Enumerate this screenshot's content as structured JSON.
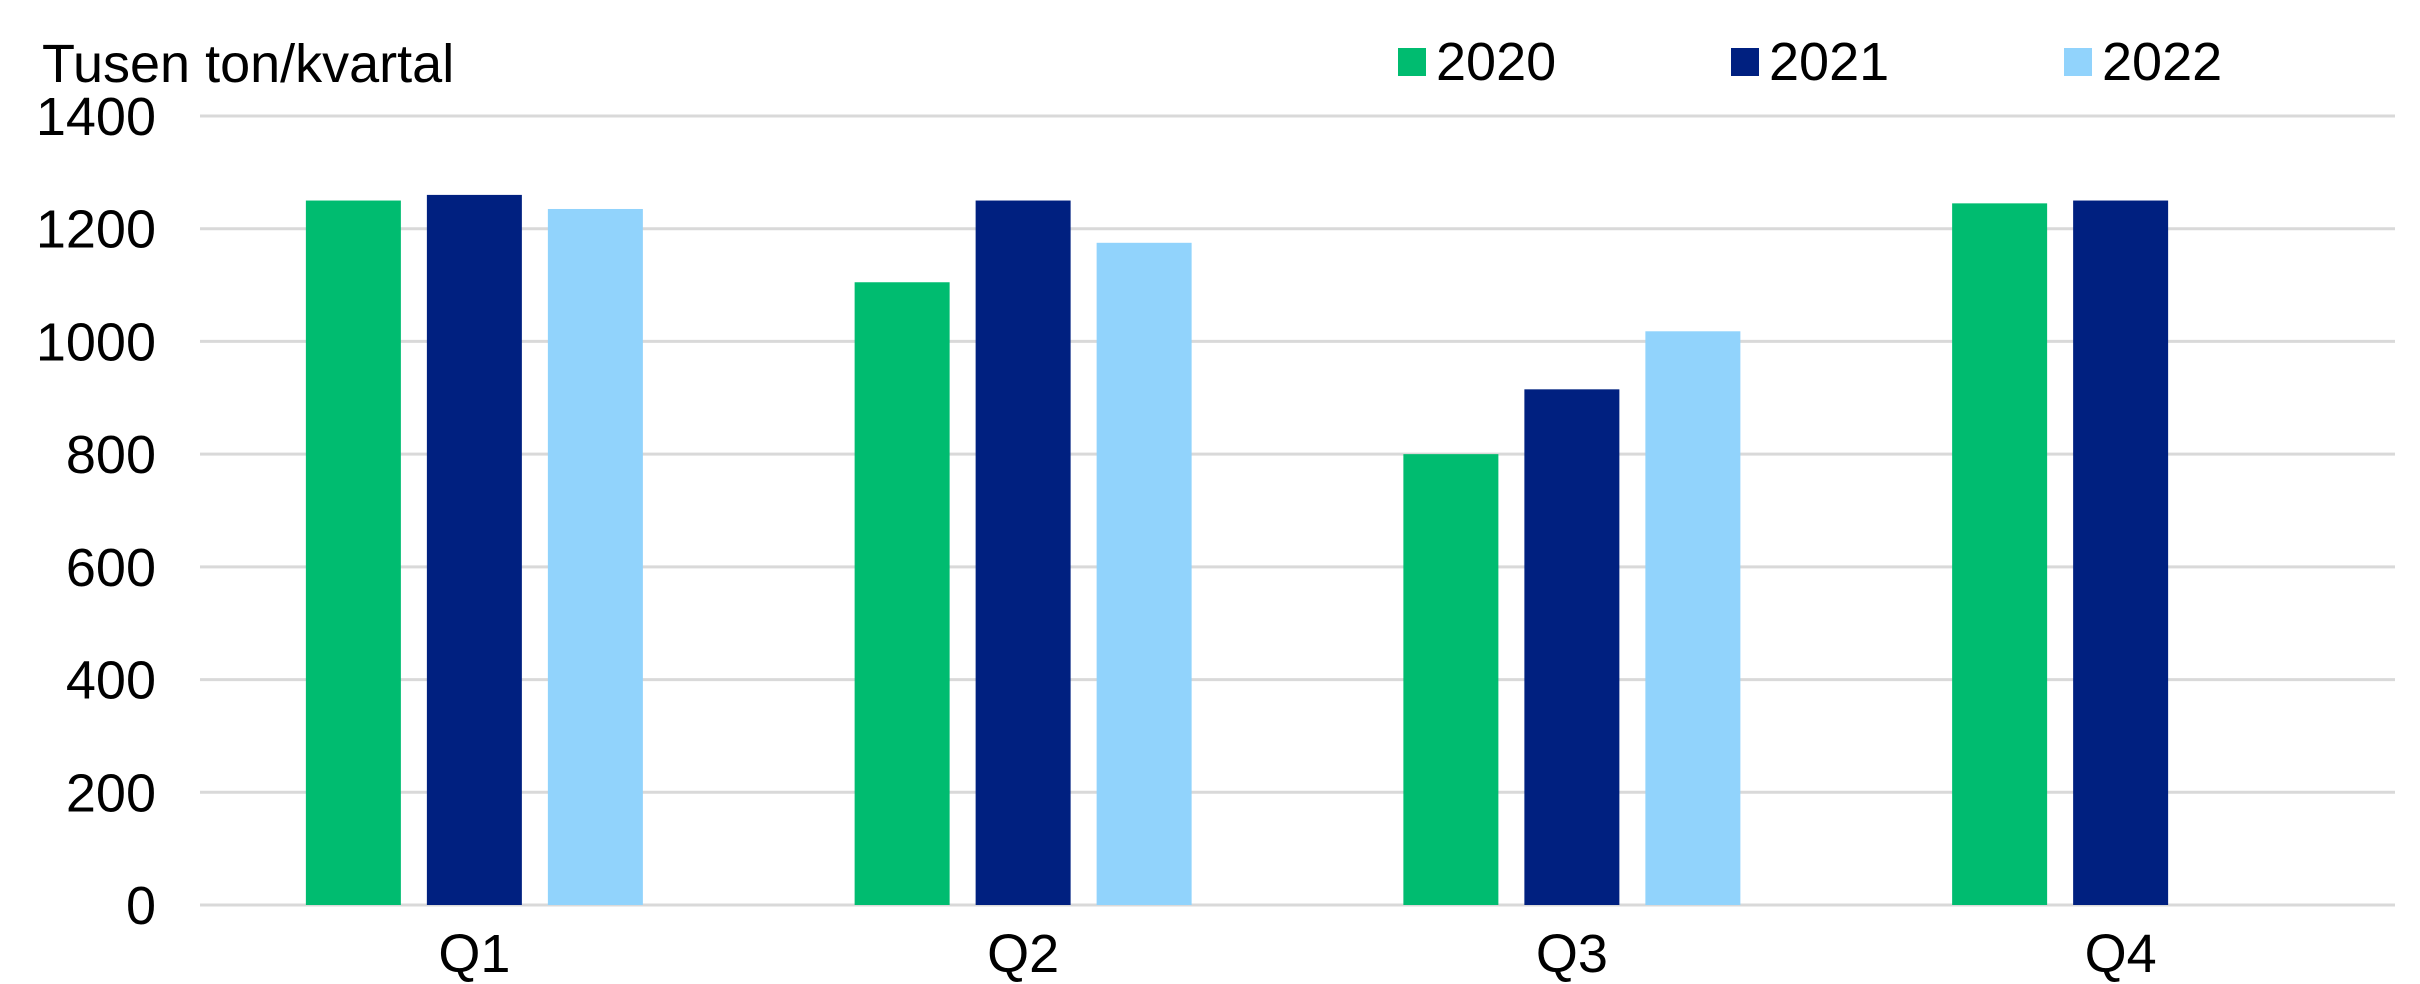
{
  "chart_data": {
    "type": "bar",
    "ylabel": "Tusen ton/kvartal",
    "categories": [
      "Q1",
      "Q2",
      "Q3",
      "Q4"
    ],
    "series": [
      {
        "name": "2020",
        "color": "#00BC70",
        "values": [
          1250,
          1105,
          800,
          1245
        ]
      },
      {
        "name": "2021",
        "color": "#002080",
        "values": [
          1260,
          1250,
          915,
          1250
        ]
      },
      {
        "name": "2022",
        "color": "#91D3FC",
        "values": [
          1235,
          1175,
          1018,
          null
        ]
      }
    ],
    "yticks": [
      0,
      200,
      400,
      600,
      800,
      1000,
      1200,
      1400
    ],
    "ylim": [
      0,
      1400
    ],
    "grid": true,
    "gridline_color": "#D9D9D9",
    "legend_position": "top-right"
  }
}
